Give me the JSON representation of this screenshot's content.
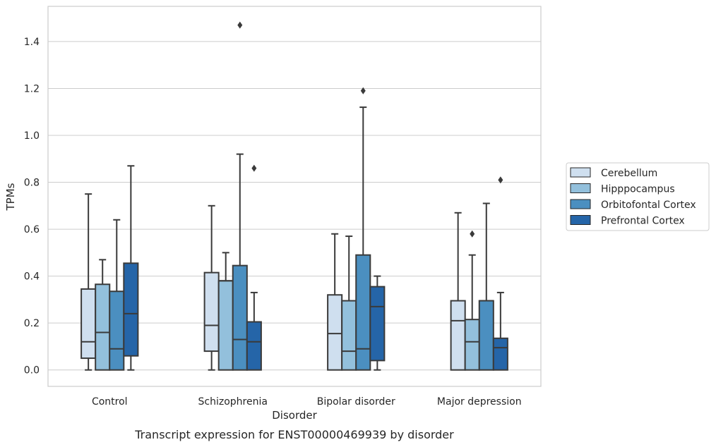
{
  "chart_data": {
    "type": "box",
    "caption": "Transcript expression for ENST00000469939 by disorder",
    "xlabel": "Disorder",
    "ylabel": "TPMs",
    "ylim": [
      -0.07,
      1.55
    ],
    "yticks": [
      0.0,
      0.2,
      0.4,
      0.6,
      0.8,
      1.0,
      1.2,
      1.4
    ],
    "ytick_labels": [
      "0.0",
      "0.2",
      "0.4",
      "0.6",
      "0.8",
      "1.0",
      "1.2",
      "1.4"
    ],
    "grid": "horizontal",
    "legend_position": "right",
    "categories": [
      "Control",
      "Schizophrenia",
      "Bipolar disorder",
      "Major depression"
    ],
    "series": [
      {
        "name": "Cerebellum",
        "color": "#cfdfef",
        "boxes": [
          {
            "whislo": 0.0,
            "q1": 0.05,
            "med": 0.12,
            "q3": 0.345,
            "whishi": 0.75,
            "fliers": []
          },
          {
            "whislo": 0.0,
            "q1": 0.08,
            "med": 0.19,
            "q3": 0.415,
            "whishi": 0.7,
            "fliers": []
          },
          {
            "whislo": 0.0,
            "q1": 0.0,
            "med": 0.155,
            "q3": 0.32,
            "whishi": 0.58,
            "fliers": []
          },
          {
            "whislo": 0.0,
            "q1": 0.0,
            "med": 0.21,
            "q3": 0.295,
            "whishi": 0.67,
            "fliers": []
          }
        ]
      },
      {
        "name": "Hipppocampus",
        "color": "#93c0dc",
        "boxes": [
          {
            "whislo": 0.0,
            "q1": 0.0,
            "med": 0.16,
            "q3": 0.365,
            "whishi": 0.47,
            "fliers": []
          },
          {
            "whislo": 0.0,
            "q1": 0.0,
            "med": 0.38,
            "q3": 0.38,
            "whishi": 0.5,
            "fliers": []
          },
          {
            "whislo": 0.0,
            "q1": 0.0,
            "med": 0.08,
            "q3": 0.295,
            "whishi": 0.57,
            "fliers": []
          },
          {
            "whislo": 0.0,
            "q1": 0.0,
            "med": 0.12,
            "q3": 0.215,
            "whishi": 0.49,
            "fliers": [
              0.58
            ]
          }
        ]
      },
      {
        "name": "Orbitofontal Cortex",
        "color": "#4b8fc0",
        "boxes": [
          {
            "whislo": 0.0,
            "q1": 0.0,
            "med": 0.09,
            "q3": 0.335,
            "whishi": 0.64,
            "fliers": []
          },
          {
            "whislo": 0.0,
            "q1": 0.0,
            "med": 0.13,
            "q3": 0.445,
            "whishi": 0.92,
            "fliers": [
              1.47
            ]
          },
          {
            "whislo": 0.0,
            "q1": 0.0,
            "med": 0.09,
            "q3": 0.49,
            "whishi": 1.12,
            "fliers": [
              1.19
            ]
          },
          {
            "whislo": 0.0,
            "q1": 0.0,
            "med": 0.295,
            "q3": 0.295,
            "whishi": 0.71,
            "fliers": []
          }
        ]
      },
      {
        "name": "Prefrontal Cortex",
        "color": "#2565a8",
        "boxes": [
          {
            "whislo": 0.0,
            "q1": 0.06,
            "med": 0.24,
            "q3": 0.455,
            "whishi": 0.87,
            "fliers": []
          },
          {
            "whislo": 0.0,
            "q1": 0.0,
            "med": 0.12,
            "q3": 0.205,
            "whishi": 0.33,
            "fliers": [
              0.86
            ]
          },
          {
            "whislo": 0.0,
            "q1": 0.04,
            "med": 0.27,
            "q3": 0.355,
            "whishi": 0.4,
            "fliers": []
          },
          {
            "whislo": 0.0,
            "q1": 0.0,
            "med": 0.095,
            "q3": 0.135,
            "whishi": 0.33,
            "fliers": [
              0.81
            ]
          }
        ]
      }
    ]
  }
}
